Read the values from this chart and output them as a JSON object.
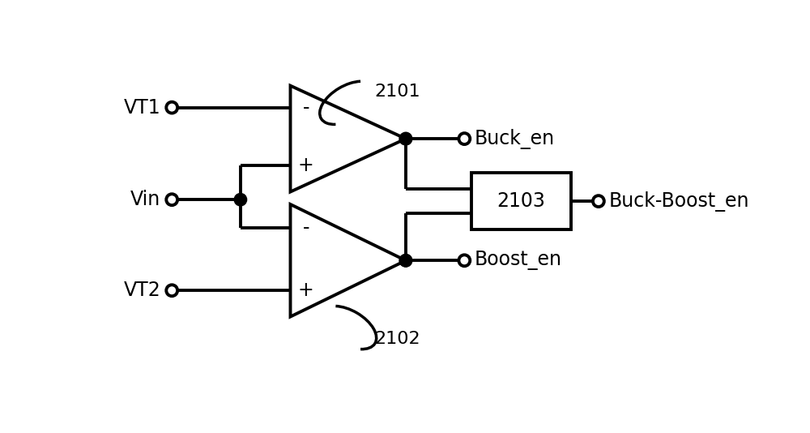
{
  "bg_color": "#ffffff",
  "line_color": "#000000",
  "line_width": 2.8,
  "font_size": 17,
  "font_family": "DejaVu Sans",
  "comp1_label": "2101",
  "comp2_label": "2102",
  "comp3_label": "2103",
  "label_vt1": "VT1",
  "label_vt2": "VT2",
  "label_vin": "Vin",
  "label_buck_en": "Buck_en",
  "label_boost_en": "Boost_en",
  "label_buck_boost_en": "Buck-Boost_en",
  "minus_label": "-",
  "plus_label": "+",
  "figw": 10.0,
  "figh": 5.34,
  "dpi": 100
}
